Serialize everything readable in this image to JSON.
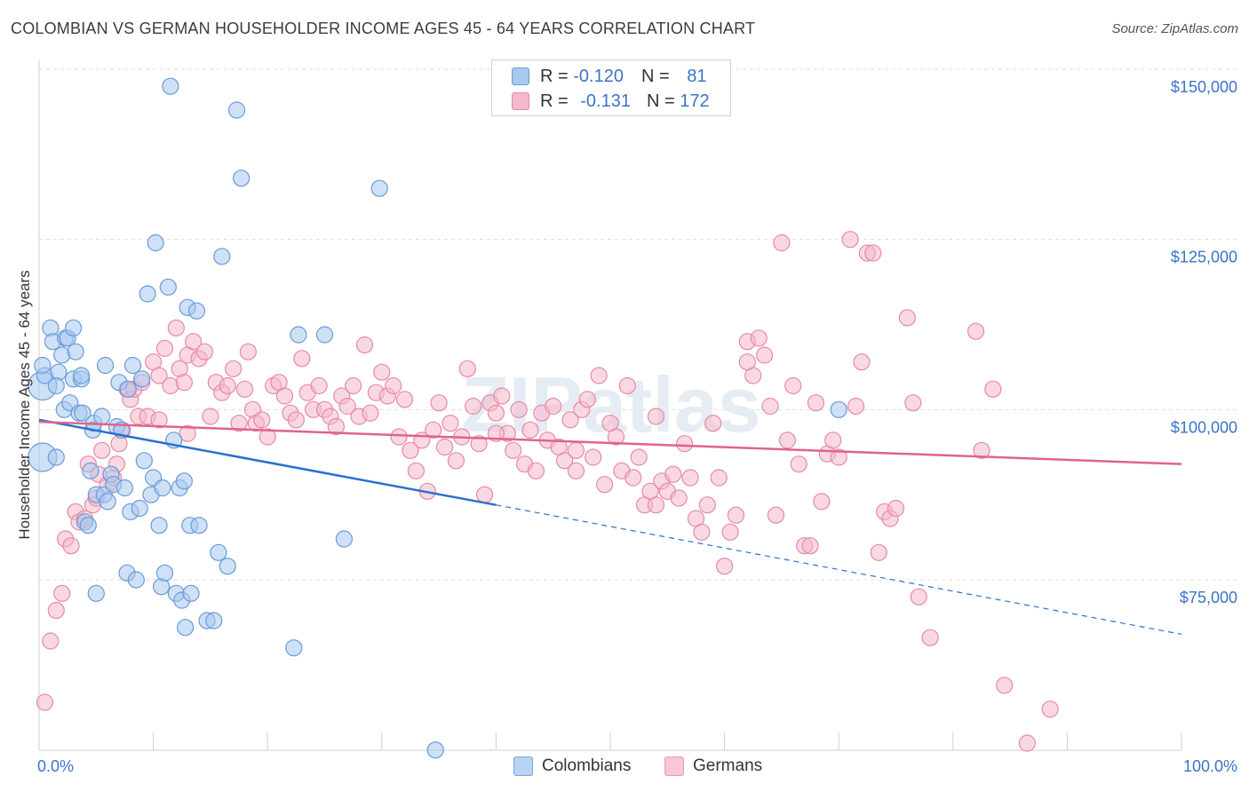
{
  "title": "COLOMBIAN VS GERMAN HOUSEHOLDER INCOME AGES 45 - 64 YEARS CORRELATION CHART",
  "source": "Source: ZipAtlas.com",
  "colors": {
    "blue_fill": "#a8c8ee",
    "blue_stroke": "#6a9ad8",
    "blue_line": "#2b6fd0",
    "pink_fill": "#f5b8cb",
    "pink_stroke": "#e58aa7",
    "pink_line": "#e0628e",
    "label_blue": "#3a74c8",
    "grid": "#dedede"
  },
  "legend": {
    "rows": [
      {
        "r_label": "R = ",
        "r_value": "-0.120",
        "n_label": "N = ",
        "n_value": "81",
        "series": "Colombians"
      },
      {
        "r_label": "R = ",
        "r_value": "-0.131",
        "n_label": "N = ",
        "n_value": "172",
        "series": "Germans"
      }
    ]
  },
  "watermark": "ZIPatlas",
  "chart_data": {
    "type": "scatter",
    "title": "COLOMBIAN VS GERMAN HOUSEHOLDER INCOME AGES 45 - 64 YEARS CORRELATION CHART",
    "xlabel": "",
    "ylabel": "Householder Income Ages 45 - 64 years",
    "xlim": [
      0,
      100
    ],
    "ylim": [
      50000,
      155000
    ],
    "x_tick_labels": [
      "0.0%",
      "100.0%"
    ],
    "y_ticks": [
      75000,
      100000,
      125000,
      150000
    ],
    "y_tick_labels": [
      "$75,000",
      "$100,000",
      "$125,000",
      "$150,000"
    ],
    "grid": true,
    "legend_position": "top-center",
    "series": [
      {
        "name": "Colombians",
        "trend": {
          "x": [
            0,
            40
          ],
          "y": [
            98500,
            86000
          ],
          "dashed_extension_to": [
            100,
            67000
          ]
        },
        "points": [
          [
            0.3,
            103500
          ],
          [
            0.3,
            93000
          ],
          [
            0.5,
            105000
          ],
          [
            1.0,
            112000
          ],
          [
            1.2,
            110000
          ],
          [
            1.5,
            93000
          ],
          [
            1.7,
            105500
          ],
          [
            2.0,
            108000
          ],
          [
            2.2,
            100000
          ],
          [
            2.3,
            110500
          ],
          [
            2.5,
            110500
          ],
          [
            2.7,
            101000
          ],
          [
            3.0,
            104500
          ],
          [
            3.0,
            112000
          ],
          [
            3.2,
            108500
          ],
          [
            3.5,
            99500
          ],
          [
            3.7,
            104500
          ],
          [
            3.7,
            105000
          ],
          [
            3.8,
            99500
          ],
          [
            4.0,
            83500
          ],
          [
            4.3,
            83000
          ],
          [
            4.5,
            91000
          ],
          [
            4.7,
            97000
          ],
          [
            4.8,
            98000
          ],
          [
            5.0,
            87500
          ],
          [
            5.0,
            73000
          ],
          [
            5.5,
            99000
          ],
          [
            5.7,
            87500
          ],
          [
            5.8,
            106500
          ],
          [
            6.0,
            86500
          ],
          [
            6.3,
            90500
          ],
          [
            6.5,
            89000
          ],
          [
            6.8,
            97500
          ],
          [
            7.0,
            104000
          ],
          [
            7.2,
            97000
          ],
          [
            7.5,
            88500
          ],
          [
            7.7,
            76000
          ],
          [
            7.8,
            103000
          ],
          [
            8.0,
            85000
          ],
          [
            8.2,
            106500
          ],
          [
            8.5,
            75000
          ],
          [
            8.8,
            85500
          ],
          [
            9.0,
            104500
          ],
          [
            9.2,
            92500
          ],
          [
            9.5,
            117000
          ],
          [
            9.8,
            87500
          ],
          [
            10.0,
            90000
          ],
          [
            10.2,
            124500
          ],
          [
            10.5,
            83000
          ],
          [
            10.7,
            74000
          ],
          [
            10.8,
            88500
          ],
          [
            11.0,
            76000
          ],
          [
            11.3,
            118000
          ],
          [
            11.5,
            147500
          ],
          [
            11.8,
            95500
          ],
          [
            12.0,
            73000
          ],
          [
            12.3,
            88500
          ],
          [
            12.5,
            72000
          ],
          [
            12.7,
            89500
          ],
          [
            12.8,
            68000
          ],
          [
            13.0,
            115000
          ],
          [
            13.2,
            83000
          ],
          [
            13.3,
            73000
          ],
          [
            13.8,
            114500
          ],
          [
            14.0,
            83000
          ],
          [
            14.7,
            69000
          ],
          [
            15.3,
            69000
          ],
          [
            15.7,
            79000
          ],
          [
            16.0,
            122500
          ],
          [
            16.5,
            77000
          ],
          [
            17.3,
            144000
          ],
          [
            17.7,
            134000
          ],
          [
            22.3,
            65000
          ],
          [
            22.7,
            111000
          ],
          [
            25.0,
            111000
          ],
          [
            26.7,
            81000
          ],
          [
            29.8,
            132500
          ],
          [
            34.7,
            50000
          ],
          [
            70.0,
            100000
          ],
          [
            1.5,
            103500
          ],
          [
            0.3,
            106500
          ]
        ]
      },
      {
        "name": "Germans",
        "trend": {
          "x": [
            0,
            100
          ],
          "y": [
            98200,
            92000
          ]
        },
        "points": [
          [
            0.5,
            57000
          ],
          [
            1.0,
            66000
          ],
          [
            1.5,
            70500
          ],
          [
            2.0,
            73000
          ],
          [
            2.3,
            81000
          ],
          [
            2.8,
            80000
          ],
          [
            3.2,
            85000
          ],
          [
            3.5,
            83500
          ],
          [
            4.0,
            84000
          ],
          [
            4.3,
            92000
          ],
          [
            4.7,
            86000
          ],
          [
            5.0,
            87000
          ],
          [
            5.2,
            90500
          ],
          [
            5.5,
            94000
          ],
          [
            6.0,
            89000
          ],
          [
            6.5,
            90000
          ],
          [
            6.8,
            92000
          ],
          [
            7.0,
            95000
          ],
          [
            7.3,
            97000
          ],
          [
            7.7,
            103000
          ],
          [
            8.0,
            101500
          ],
          [
            8.3,
            103000
          ],
          [
            8.7,
            99000
          ],
          [
            9.0,
            104000
          ],
          [
            9.5,
            99000
          ],
          [
            10.0,
            107000
          ],
          [
            10.5,
            105000
          ],
          [
            11.0,
            109000
          ],
          [
            11.5,
            103500
          ],
          [
            12.0,
            112000
          ],
          [
            12.3,
            106000
          ],
          [
            12.7,
            104000
          ],
          [
            13.0,
            108000
          ],
          [
            13.5,
            110000
          ],
          [
            14.0,
            107500
          ],
          [
            14.5,
            108500
          ],
          [
            15.0,
            99000
          ],
          [
            15.5,
            104000
          ],
          [
            16.0,
            102500
          ],
          [
            16.5,
            103500
          ],
          [
            17.0,
            106000
          ],
          [
            17.5,
            98000
          ],
          [
            18.0,
            103000
          ],
          [
            18.3,
            108500
          ],
          [
            18.7,
            100000
          ],
          [
            19.0,
            98000
          ],
          [
            19.5,
            98500
          ],
          [
            20.0,
            96000
          ],
          [
            20.5,
            103500
          ],
          [
            21.0,
            104000
          ],
          [
            21.5,
            102000
          ],
          [
            22.0,
            99500
          ],
          [
            22.5,
            98500
          ],
          [
            23.0,
            107500
          ],
          [
            23.5,
            102500
          ],
          [
            24.0,
            100000
          ],
          [
            24.5,
            103500
          ],
          [
            25.0,
            100000
          ],
          [
            25.5,
            99000
          ],
          [
            26.0,
            97500
          ],
          [
            26.5,
            102000
          ],
          [
            27.0,
            100500
          ],
          [
            27.5,
            103500
          ],
          [
            28.0,
            99000
          ],
          [
            28.5,
            109500
          ],
          [
            29.0,
            99500
          ],
          [
            29.5,
            102500
          ],
          [
            30.0,
            105500
          ],
          [
            30.5,
            102000
          ],
          [
            31.0,
            103500
          ],
          [
            31.5,
            96000
          ],
          [
            32.0,
            101500
          ],
          [
            32.5,
            94000
          ],
          [
            33.0,
            91000
          ],
          [
            33.5,
            95500
          ],
          [
            34.0,
            88000
          ],
          [
            34.5,
            97000
          ],
          [
            35.0,
            101000
          ],
          [
            35.5,
            94500
          ],
          [
            36.0,
            98000
          ],
          [
            36.5,
            92500
          ],
          [
            37.0,
            96000
          ],
          [
            37.5,
            106000
          ],
          [
            38.0,
            100500
          ],
          [
            38.5,
            95000
          ],
          [
            39.0,
            87500
          ],
          [
            39.5,
            101000
          ],
          [
            40.0,
            99500
          ],
          [
            40.5,
            102000
          ],
          [
            41.0,
            96500
          ],
          [
            41.5,
            94000
          ],
          [
            42.0,
            100000
          ],
          [
            42.5,
            92000
          ],
          [
            43.0,
            97000
          ],
          [
            43.5,
            91000
          ],
          [
            44.0,
            99500
          ],
          [
            44.5,
            95500
          ],
          [
            45.0,
            100500
          ],
          [
            45.5,
            94500
          ],
          [
            46.0,
            92500
          ],
          [
            46.5,
            98500
          ],
          [
            47.0,
            91000
          ],
          [
            47.5,
            100000
          ],
          [
            48.0,
            101500
          ],
          [
            48.5,
            93000
          ],
          [
            49.0,
            105000
          ],
          [
            49.5,
            89000
          ],
          [
            50.0,
            98000
          ],
          [
            50.5,
            96000
          ],
          [
            51.0,
            91000
          ],
          [
            51.5,
            103500
          ],
          [
            52.0,
            90000
          ],
          [
            52.5,
            93000
          ],
          [
            53.0,
            86000
          ],
          [
            53.5,
            88000
          ],
          [
            54.0,
            99000
          ],
          [
            54.5,
            89500
          ],
          [
            55.0,
            88000
          ],
          [
            55.5,
            90500
          ],
          [
            56.0,
            87000
          ],
          [
            56.5,
            95000
          ],
          [
            57.0,
            90000
          ],
          [
            57.5,
            84000
          ],
          [
            58.0,
            82000
          ],
          [
            58.5,
            86000
          ],
          [
            59.0,
            98000
          ],
          [
            59.5,
            90000
          ],
          [
            60.0,
            77000
          ],
          [
            60.5,
            82000
          ],
          [
            61.0,
            84500
          ],
          [
            62.0,
            110000
          ],
          [
            62.5,
            105000
          ],
          [
            63.0,
            110500
          ],
          [
            63.5,
            108000
          ],
          [
            64.0,
            100500
          ],
          [
            64.5,
            84500
          ],
          [
            65.0,
            124500
          ],
          [
            65.5,
            95500
          ],
          [
            66.0,
            103500
          ],
          [
            66.5,
            92000
          ],
          [
            67.0,
            80000
          ],
          [
            67.5,
            80000
          ],
          [
            68.0,
            101000
          ],
          [
            68.5,
            86500
          ],
          [
            69.0,
            93500
          ],
          [
            69.5,
            95500
          ],
          [
            70.0,
            93000
          ],
          [
            71.0,
            125000
          ],
          [
            71.5,
            100500
          ],
          [
            72.0,
            107000
          ],
          [
            72.5,
            123000
          ],
          [
            73.0,
            123000
          ],
          [
            73.5,
            79000
          ],
          [
            74.0,
            85000
          ],
          [
            74.5,
            84000
          ],
          [
            75.0,
            85500
          ],
          [
            76.0,
            113500
          ],
          [
            76.5,
            101000
          ],
          [
            77.0,
            72500
          ],
          [
            78.0,
            66500
          ],
          [
            82.0,
            111500
          ],
          [
            82.5,
            94000
          ],
          [
            83.5,
            103000
          ],
          [
            84.5,
            59500
          ],
          [
            86.5,
            51000
          ],
          [
            88.5,
            56000
          ],
          [
            10.5,
            98500
          ],
          [
            13.0,
            96500
          ],
          [
            47.0,
            94000
          ],
          [
            54.0,
            86000
          ],
          [
            62.0,
            107000
          ],
          [
            40.0,
            96500
          ]
        ]
      }
    ]
  }
}
